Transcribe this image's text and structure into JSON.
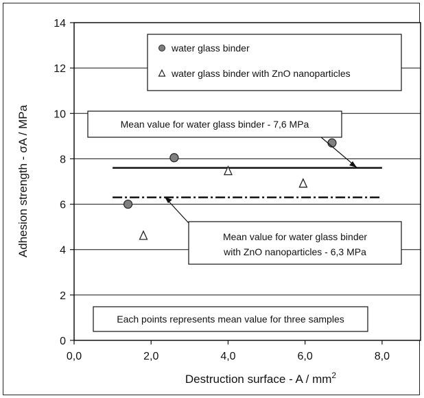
{
  "chart_data": {
    "type": "scatter",
    "xlabel": "Destruction  surface - A / mm",
    "xlabel_sup": "2",
    "ylabel": "Adhesion strength - σA / MPa",
    "xlim": [
      0,
      9
    ],
    "ylim": [
      0,
      14
    ],
    "x_ticks": [
      "0,0",
      "2,0",
      "4,0",
      "6,0",
      "8,0"
    ],
    "x_tick_values": [
      0,
      2,
      4,
      6,
      8
    ],
    "y_ticks": [
      "0",
      "2",
      "4",
      "6",
      "8",
      "10",
      "12",
      "14"
    ],
    "y_tick_values": [
      0,
      2,
      4,
      6,
      8,
      10,
      12,
      14
    ],
    "grid": "horizontal",
    "series": [
      {
        "name": "water glass binder",
        "marker": "circle",
        "color": "#7f7f7f",
        "points": [
          {
            "x": 1.4,
            "y": 6.0
          },
          {
            "x": 2.6,
            "y": 8.05
          },
          {
            "x": 6.7,
            "y": 8.7
          }
        ]
      },
      {
        "name": "water glass binder with ZnO nanoparticles",
        "marker": "triangle",
        "color": "#ffffff",
        "points": [
          {
            "x": 1.8,
            "y": 4.6
          },
          {
            "x": 4.0,
            "y": 7.45
          },
          {
            "x": 5.95,
            "y": 6.9
          }
        ]
      }
    ],
    "mean_lines": [
      {
        "label": "Mean value for water glass binder  -  7,6 MPa",
        "value": 7.6,
        "x_range": [
          1.0,
          8.0
        ],
        "style": "solid"
      },
      {
        "label_line1": "Mean value for water glass binder",
        "label_line2": "with ZnO nanoparticles  -  6,3 MPa",
        "value": 6.3,
        "x_range": [
          1.0,
          8.0
        ],
        "style": "dash-dot"
      }
    ],
    "note": "Each points represents mean value for three samples"
  }
}
